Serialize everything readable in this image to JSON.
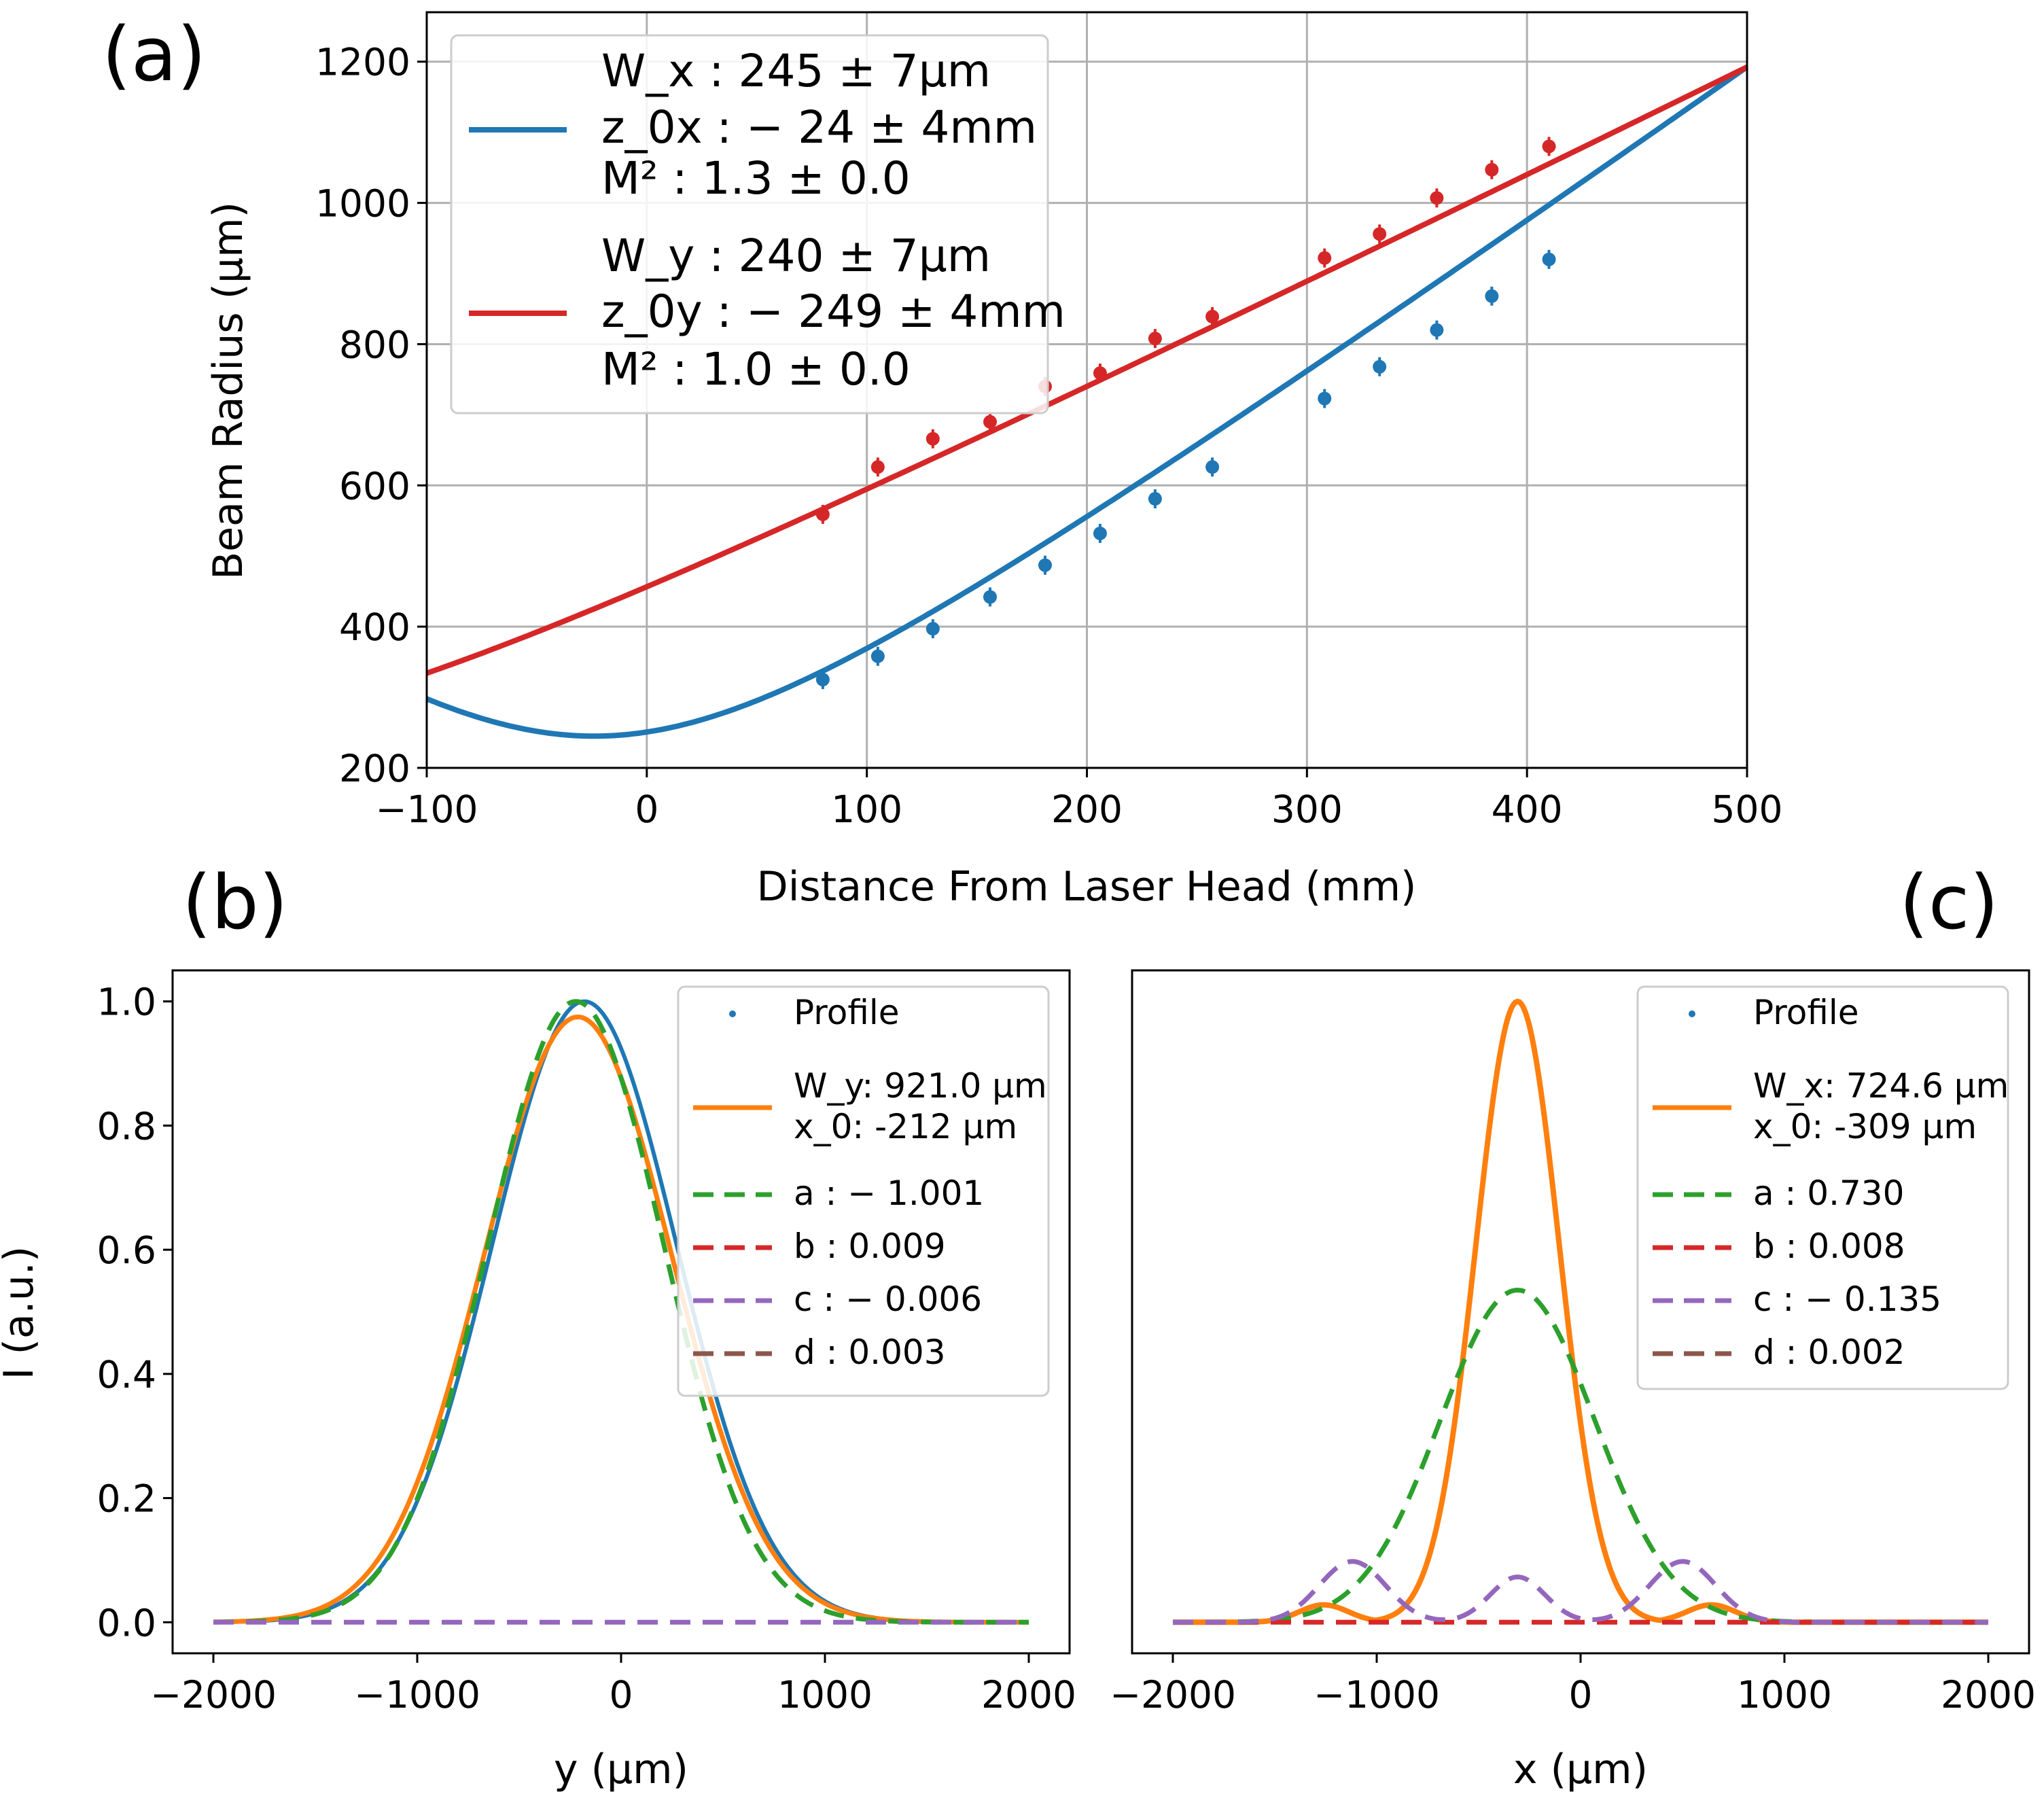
{
  "chart_data": [
    {
      "id": "a",
      "type": "line",
      "panel_label": "(a)",
      "xlabel": "Distance From Laser Head (mm)",
      "ylabel": "Beam Radius (μm)",
      "xlim": [
        -100,
        500
      ],
      "ylim": [
        200,
        1270
      ],
      "xticks": [
        -100,
        0,
        100,
        200,
        300,
        400,
        500
      ],
      "xtick_labels": [
        "−100",
        "0",
        "100",
        "200",
        "300",
        "400",
        "500"
      ],
      "yticks": [
        200,
        400,
        600,
        800,
        1000,
        1200
      ],
      "ytick_labels": [
        "200",
        "400",
        "600",
        "800",
        "1000",
        "1200"
      ],
      "grid": true,
      "legend_position": "top-left",
      "series": [
        {
          "color": "#1f77b4",
          "legend_lines": [
            "W_x : 245 ± 7μm",
            "z_0x : − 24 ± 4mm",
            "M² : 1.3 ± 0.0"
          ],
          "fit": {
            "w0": 245,
            "z0": -24,
            "zr": 110
          },
          "points_x": [
            80,
            105,
            130,
            156,
            181,
            206,
            231,
            257,
            308,
            333,
            359,
            384,
            410
          ],
          "points_y": [
            325,
            358,
            397,
            442,
            487,
            532,
            581,
            626,
            723,
            768,
            820,
            868,
            920
          ]
        },
        {
          "color": "#d62728",
          "legend_lines": [
            "W_y : 240 ± 7μm",
            "z_0y : − 249 ± 4mm",
            "M² : 1.0 ± 0.0"
          ],
          "fit": {
            "w0": 240,
            "z0": -249,
            "zr": 153.9
          },
          "points_x": [
            80,
            105,
            130,
            156,
            181,
            206,
            231,
            257,
            308,
            333,
            359,
            384,
            410
          ],
          "points_y": [
            559,
            626,
            666,
            690,
            740,
            759,
            808,
            839,
            922,
            956,
            1007,
            1047,
            1080
          ]
        }
      ]
    },
    {
      "id": "b",
      "type": "line",
      "panel_label": "(b)",
      "xlabel": "y (μm)",
      "ylabel": "I (a.u.)",
      "xlim": [
        -2200,
        2200
      ],
      "ylim": [
        -0.05,
        1.05
      ],
      "xticks": [
        -2000,
        -1000,
        0,
        1000,
        2000
      ],
      "xtick_labels": [
        "−2000",
        "−1000",
        "0",
        "1000",
        "2000"
      ],
      "yticks": [
        0.0,
        0.2,
        0.4,
        0.6,
        0.8,
        1.0
      ],
      "ytick_labels": [
        "0.0",
        "0.2",
        "0.4",
        "0.6",
        "0.8",
        "1.0"
      ],
      "grid": false,
      "legend_position": "top-right",
      "legend": [
        {
          "style": "dot",
          "color": "#1f77b4",
          "lines": [
            "Profile"
          ]
        },
        {
          "style": "solid",
          "color": "#ff7f0e",
          "lines": [
            "W_y: 921.0 μm",
            "x_0: -212 μm"
          ]
        },
        {
          "style": "dash",
          "color": "#2ca02c",
          "lines": [
            "a : − 1.001"
          ]
        },
        {
          "style": "dash",
          "color": "#d62728",
          "lines": [
            "b : 0.009"
          ]
        },
        {
          "style": "dash",
          "color": "#9467bd",
          "lines": [
            "c : − 0.006"
          ]
        },
        {
          "style": "dash",
          "color": "#8c564b",
          "lines": [
            "d : 0.003"
          ]
        }
      ],
      "model": {
        "center": -212,
        "width": 921.0,
        "profile_center": -180,
        "a": -1.001,
        "b": 0.009,
        "c": -0.006,
        "d": 0.003
      }
    },
    {
      "id": "c",
      "type": "line",
      "panel_label": "(c)",
      "xlabel": "x (μm)",
      "ylabel": "",
      "xlim": [
        -2200,
        2200
      ],
      "ylim": [
        -0.05,
        1.05
      ],
      "xticks": [
        -2000,
        -1000,
        0,
        1000,
        2000
      ],
      "xtick_labels": [
        "−2000",
        "−1000",
        "0",
        "1000",
        "2000"
      ],
      "grid": false,
      "legend_position": "top-right",
      "legend": [
        {
          "style": "dot",
          "color": "#1f77b4",
          "lines": [
            "Profile"
          ]
        },
        {
          "style": "solid",
          "color": "#ff7f0e",
          "lines": [
            "W_x: 724.6 μm",
            "x_0: -309 μm"
          ]
        },
        {
          "style": "dash",
          "color": "#2ca02c",
          "lines": [
            "a : 0.730"
          ]
        },
        {
          "style": "dash",
          "color": "#d62728",
          "lines": [
            "b : 0.008"
          ]
        },
        {
          "style": "dash",
          "color": "#9467bd",
          "lines": [
            "c : − 0.135"
          ]
        },
        {
          "style": "dash",
          "color": "#8c564b",
          "lines": [
            "d : 0.002"
          ]
        }
      ],
      "model": {
        "center": -309,
        "width": 724.6,
        "a": 0.73,
        "b": 0.008,
        "c": -0.135,
        "d": 0.002
      }
    }
  ]
}
